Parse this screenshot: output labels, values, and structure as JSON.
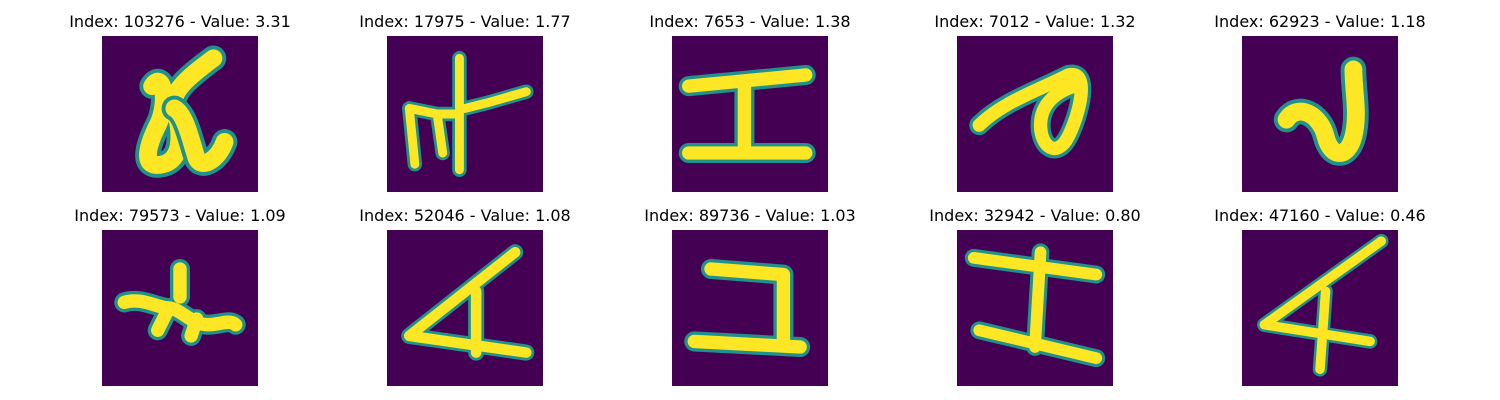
{
  "colors": {
    "background_pixel": "#440154",
    "edge_pixel": "#21918c",
    "stroke_pixel": "#fde725"
  },
  "panels": [
    {
      "title": "Index: 103276 - Value: 3.31",
      "glyph": "glyph-a"
    },
    {
      "title": "Index: 17975 - Value: 1.77",
      "glyph": "glyph-b"
    },
    {
      "title": "Index: 7653 - Value: 1.38",
      "glyph": "glyph-c"
    },
    {
      "title": "Index: 7012 - Value: 1.32",
      "glyph": "glyph-d"
    },
    {
      "title": "Index: 62923 - Value: 1.18",
      "glyph": "glyph-e"
    },
    {
      "title": "Index: 79573 - Value: 1.09",
      "glyph": "glyph-f"
    },
    {
      "title": "Index: 52046 - Value: 1.08",
      "glyph": "glyph-g"
    },
    {
      "title": "Index: 89736 - Value: 1.03",
      "glyph": "glyph-h"
    },
    {
      "title": "Index: 32942 - Value: 0.80",
      "glyph": "glyph-i"
    },
    {
      "title": "Index: 47160 - Value: 0.46",
      "glyph": "glyph-j"
    }
  ]
}
